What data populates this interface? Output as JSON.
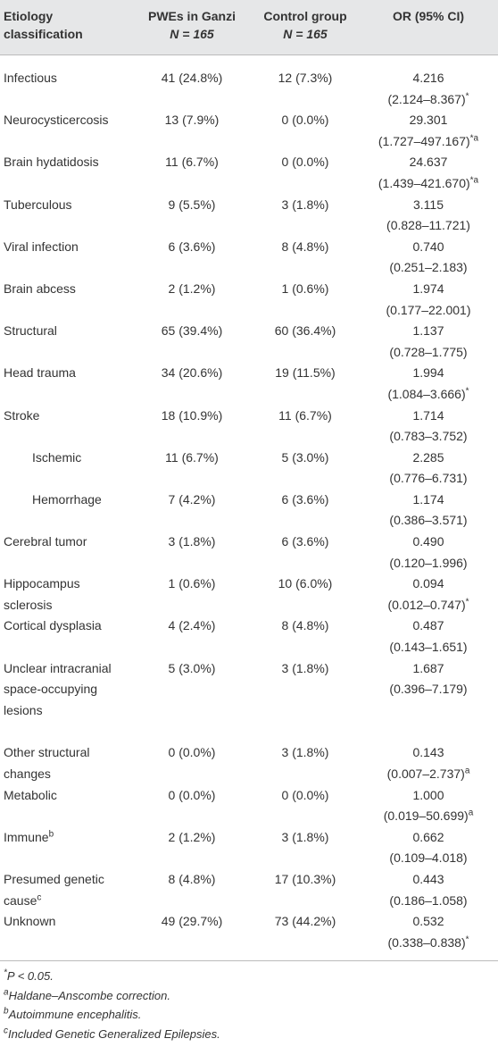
{
  "table": {
    "header": [
      {
        "text": "Etiology classification"
      },
      {
        "text": "PWEs in Ganzi",
        "n": "N = 165"
      },
      {
        "text": "Control group",
        "n": "N = 165"
      },
      {
        "text": "OR (95% CI)"
      }
    ],
    "rows": [
      {
        "label": "Infectious",
        "pwe": "41 (24.8%)",
        "control": "12 (7.3%)",
        "or": "4.216",
        "ci": "(2.124–8.367)",
        "ci_sup": "*"
      },
      {
        "label": "Neurocysticercosis",
        "pwe": "13 (7.9%)",
        "control": "0 (0.0%)",
        "or": "29.301",
        "ci": "(1.727–497.167)",
        "ci_sup": "*a"
      },
      {
        "label": "Brain hydatidosis",
        "pwe": "11 (6.7%)",
        "control": "0 (0.0%)",
        "or": "24.637",
        "ci": "(1.439–421.670)",
        "ci_sup": "*a"
      },
      {
        "label": "Tuberculous",
        "pwe": "9 (5.5%)",
        "control": "3 (1.8%)",
        "or": "3.115",
        "ci": "(0.828–11.721)"
      },
      {
        "label": "Viral infection",
        "pwe": "6 (3.6%)",
        "control": "8 (4.8%)",
        "or": "0.740",
        "ci": "(0.251–2.183)"
      },
      {
        "label": "Brain abcess",
        "pwe": "2 (1.2%)",
        "control": "1 (0.6%)",
        "or": "1.974",
        "ci": "(0.177–22.001)"
      },
      {
        "label": "Structural",
        "pwe": "65 (39.4%)",
        "control": "60 (36.4%)",
        "or": "1.137",
        "ci": "(0.728–1.775)"
      },
      {
        "label": "Head trauma",
        "pwe": "34 (20.6%)",
        "control": "19 (11.5%)",
        "or": "1.994",
        "ci": "(1.084–3.666)",
        "ci_sup": "*"
      },
      {
        "label": "Stroke",
        "pwe": "18 (10.9%)",
        "control": "11 (6.7%)",
        "or": "1.714",
        "ci": "(0.783–3.752)"
      },
      {
        "label": "Ischemic",
        "indent": true,
        "pwe": "11 (6.7%)",
        "control": "5 (3.0%)",
        "or": "2.285",
        "ci": "(0.776–6.731)"
      },
      {
        "label": "Hemorrhage",
        "indent": true,
        "pwe": "7 (4.2%)",
        "control": "6 (3.6%)",
        "or": "1.174",
        "ci": "(0.386–3.571)"
      },
      {
        "label": "Cerebral tumor",
        "pwe": "3 (1.8%)",
        "control": "6 (3.6%)",
        "or": "0.490",
        "ci": "(0.120–1.996)"
      },
      {
        "label": "Hippocampus sclerosis",
        "pwe": "1 (0.6%)",
        "control": "10 (6.0%)",
        "or": "0.094",
        "ci": "(0.012–0.747)",
        "ci_sup": "*"
      },
      {
        "label": "Cortical dysplasia",
        "pwe": "4 (2.4%)",
        "control": "8 (4.8%)",
        "or": "0.487",
        "ci": "(0.143–1.651)"
      },
      {
        "label": "Unclear intracranial space-occupying lesions",
        "pwe": "5 (3.0%)",
        "control": "3 (1.8%)",
        "or": "1.687",
        "ci": "(0.396–7.179)"
      },
      {
        "label": "Other structural changes",
        "pwe": "0 (0.0%)",
        "control": "3 (1.8%)",
        "or": "0.143",
        "ci": "(0.007–2.737)",
        "ci_sup": "a"
      },
      {
        "label": "Metabolic",
        "pwe": "0 (0.0%)",
        "control": "0 (0.0%)",
        "or": "1.000",
        "ci": "(0.019–50.699)",
        "ci_sup": "a"
      },
      {
        "label": "Immune",
        "label_sup": "b",
        "pwe": "2 (1.2%)",
        "control": "3 (1.8%)",
        "or": "0.662",
        "ci": "(0.109–4.018)"
      },
      {
        "label": "Presumed genetic cause",
        "label_sup": "c",
        "pwe": "8 (4.8%)",
        "control": "17 (10.3%)",
        "or": "0.443",
        "ci": "(0.186–1.058)"
      },
      {
        "label": "Unknown",
        "pwe": "49 (29.7%)",
        "control": "73 (44.2%)",
        "or": "0.532",
        "ci": "(0.338–0.838)",
        "ci_sup": "*"
      }
    ],
    "footnotes": [
      {
        "symbol": "*",
        "text": "P < 0.05."
      },
      {
        "symbol": "a",
        "text": "Haldane–Anscombe correction."
      },
      {
        "symbol": "b",
        "text": "Autoimmune encephalitis."
      },
      {
        "symbol": "c",
        "text": "Included Genetic Generalized Epilepsies."
      }
    ]
  }
}
